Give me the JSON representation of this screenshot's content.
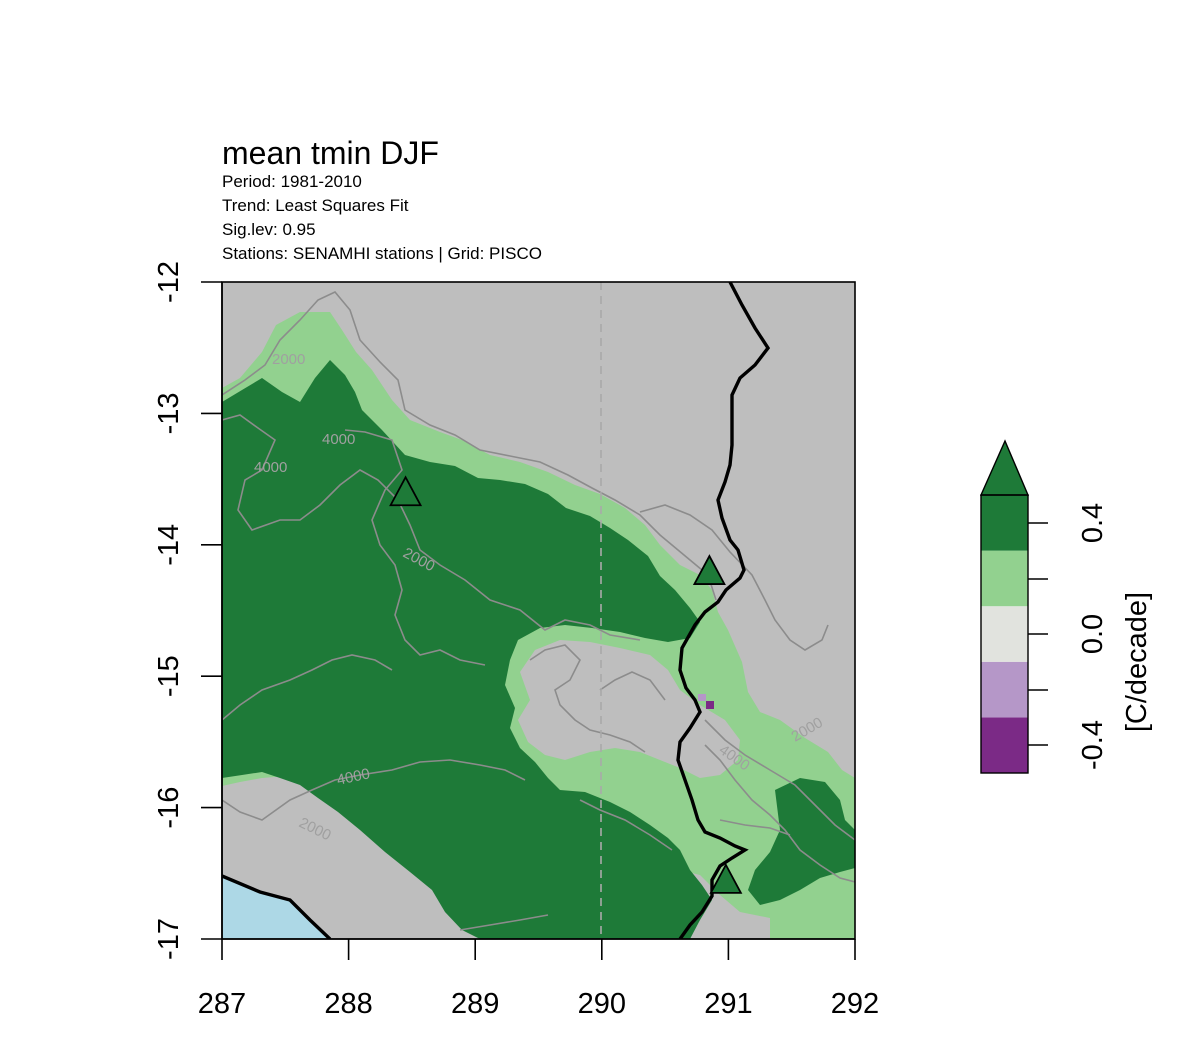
{
  "title": "mean tmin DJF",
  "subtitle_lines": [
    "Period: 1981-2010",
    "Trend:  Least Squares Fit",
    "Sig.lev: 0.95",
    "Stations: SENAMHI stations | Grid: PISCO"
  ],
  "axes": {
    "x_ticks": [
      "287",
      "288",
      "289",
      "290",
      "291",
      "292"
    ],
    "y_ticks": [
      "-12",
      "-13",
      "-14",
      "-15",
      "-16",
      "-17"
    ],
    "xlim": [
      287,
      292
    ],
    "ylim": [
      -17,
      -12
    ]
  },
  "contour_labels": [
    "2000",
    "4000",
    "4000",
    "2000",
    "4000",
    "2000",
    "4000",
    "2000"
  ],
  "stations": [
    {
      "lon": 288.45,
      "lat": -13.6
    },
    {
      "lon": 290.85,
      "lat": -14.2
    },
    {
      "lon": 290.98,
      "lat": -16.55
    }
  ],
  "colorbar": {
    "unit_label": "[C/decade]",
    "tick_labels": [
      "-0.4",
      "0.0",
      "0.4"
    ],
    "classes": [
      {
        "color": "#7b2a86"
      },
      {
        "color": "#b597c8"
      },
      {
        "color": "#e1e3de"
      },
      {
        "color": "#92d18f"
      },
      {
        "color": "#1e7a38"
      }
    ]
  },
  "colors": {
    "land_bg": "#bebebe",
    "ocean": "#add8e6",
    "strong_warming": "#1e7a38",
    "weak_warming": "#92d18f",
    "contour": "#8c8c8c",
    "border": "#000000"
  }
}
